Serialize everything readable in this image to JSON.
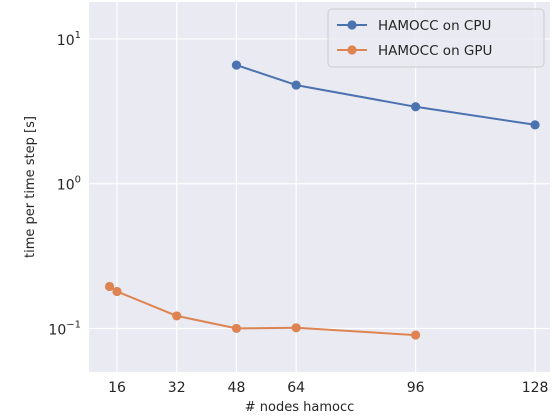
{
  "chart_data": {
    "type": "line",
    "title": "",
    "xlabel": "# nodes hamocc",
    "ylabel": "time per time step [s]",
    "xscale": "linear",
    "yscale": "log",
    "xlim": [
      8.5,
      132
    ],
    "ylim": [
      0.05,
      18
    ],
    "grid": true,
    "legend_position": "top-right",
    "x_ticks": [
      {
        "value": 16,
        "label": "16"
      },
      {
        "value": 32,
        "label": "32"
      },
      {
        "value": 48,
        "label": "48"
      },
      {
        "value": 64,
        "label": "64"
      },
      {
        "value": 96,
        "label": "96"
      },
      {
        "value": 128,
        "label": "128"
      }
    ],
    "y_ticks": [
      {
        "value": 0.1,
        "base": "10",
        "exp": "−1"
      },
      {
        "value": 1,
        "base": "10",
        "exp": "0"
      },
      {
        "value": 10,
        "base": "10",
        "exp": "1"
      }
    ],
    "series": [
      {
        "name": "HAMOCC on CPU",
        "color": "#4c72b0",
        "points": [
          {
            "x": 48,
            "y": 6.6
          },
          {
            "x": 64,
            "y": 4.8
          },
          {
            "x": 96,
            "y": 3.4
          },
          {
            "x": 128,
            "y": 2.55
          }
        ]
      },
      {
        "name": "HAMOCC on GPU",
        "color": "#dd8452",
        "points": [
          {
            "x": 14,
            "y": 0.195
          },
          {
            "x": 16,
            "y": 0.18
          },
          {
            "x": 32,
            "y": 0.122
          },
          {
            "x": 48,
            "y": 0.1
          },
          {
            "x": 64,
            "y": 0.101
          },
          {
            "x": 96,
            "y": 0.09
          }
        ]
      }
    ]
  },
  "colors": {
    "plot_background": "#eaeaf2",
    "grid": "#ffffff",
    "text": "#262626"
  }
}
